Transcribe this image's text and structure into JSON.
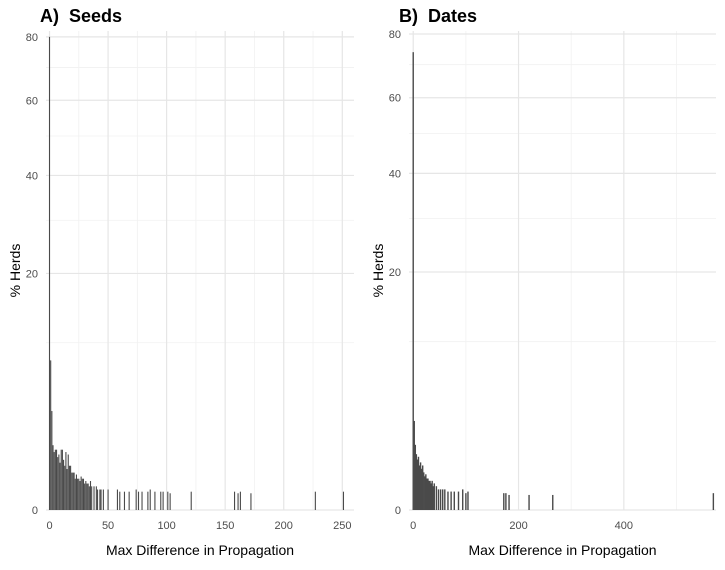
{
  "chart_data": [
    {
      "type": "bar",
      "panel_label": "A)",
      "title": "Seeds",
      "xlabel": "Max Difference in Propagation",
      "ylabel": "% Herds",
      "y_scale": "sqrt",
      "xlim": [
        -3,
        260
      ],
      "ylim": [
        0,
        82
      ],
      "xticks": [
        0,
        50,
        100,
        150,
        200,
        250
      ],
      "yticks": [
        0,
        20,
        40,
        60,
        80
      ],
      "grid": true,
      "x": [
        0,
        1,
        2,
        3,
        4,
        5,
        6,
        7,
        8,
        9,
        10,
        11,
        12,
        13,
        14,
        15,
        16,
        17,
        18,
        19,
        20,
        21,
        22,
        23,
        24,
        25,
        26,
        27,
        28,
        29,
        30,
        31,
        32,
        33,
        34,
        35,
        36,
        38,
        40,
        41,
        43,
        44,
        46,
        50,
        58,
        60,
        64,
        68,
        74,
        76,
        79,
        84,
        86,
        90,
        95,
        97,
        101,
        103,
        121,
        158,
        161,
        163,
        172,
        227,
        251
      ],
      "values": [
        80,
        8,
        3.5,
        1.5,
        1.2,
        1.3,
        1.3,
        1.0,
        1.1,
        0.8,
        1.3,
        1.3,
        0.9,
        0.7,
        1.2,
        0.6,
        1.1,
        0.7,
        0.7,
        0.5,
        0.5,
        0.5,
        0.35,
        0.45,
        0.35,
        0.35,
        0.3,
        0.4,
        0.35,
        0.35,
        0.25,
        0.3,
        0.25,
        0.25,
        0.2,
        0.3,
        0.2,
        0.2,
        0.2,
        0.15,
        0.15,
        0.15,
        0.15,
        0.15,
        0.15,
        0.12,
        0.12,
        0.12,
        0.15,
        0.12,
        0.12,
        0.12,
        0.15,
        0.12,
        0.12,
        0.12,
        0.12,
        0.1,
        0.12,
        0.12,
        0.1,
        0.12,
        0.1,
        0.12,
        0.12
      ]
    },
    {
      "type": "bar",
      "panel_label": "B)",
      "title": "Dates",
      "xlabel": "Max Difference in Propagation",
      "ylabel": "% Herds",
      "y_scale": "sqrt",
      "xlim": [
        -8,
        575
      ],
      "ylim": [
        0,
        81
      ],
      "xticks": [
        0,
        200,
        400
      ],
      "yticks": [
        0,
        20,
        40,
        60,
        80
      ],
      "grid": true,
      "x": [
        0,
        2,
        4,
        6,
        8,
        10,
        12,
        14,
        16,
        18,
        20,
        22,
        24,
        26,
        28,
        30,
        32,
        34,
        36,
        38,
        40,
        44,
        48,
        52,
        56,
        60,
        66,
        72,
        78,
        86,
        94,
        100,
        104,
        172,
        176,
        182,
        220,
        265,
        570
      ],
      "values": [
        74,
        2.8,
        1.5,
        1.1,
        0.9,
        1.0,
        0.7,
        0.8,
        0.6,
        0.7,
        0.5,
        0.4,
        0.45,
        0.35,
        0.35,
        0.3,
        0.3,
        0.25,
        0.3,
        0.2,
        0.25,
        0.2,
        0.15,
        0.15,
        0.15,
        0.15,
        0.12,
        0.12,
        0.12,
        0.12,
        0.15,
        0.1,
        0.12,
        0.1,
        0.1,
        0.08,
        0.08,
        0.08,
        0.1
      ]
    }
  ]
}
